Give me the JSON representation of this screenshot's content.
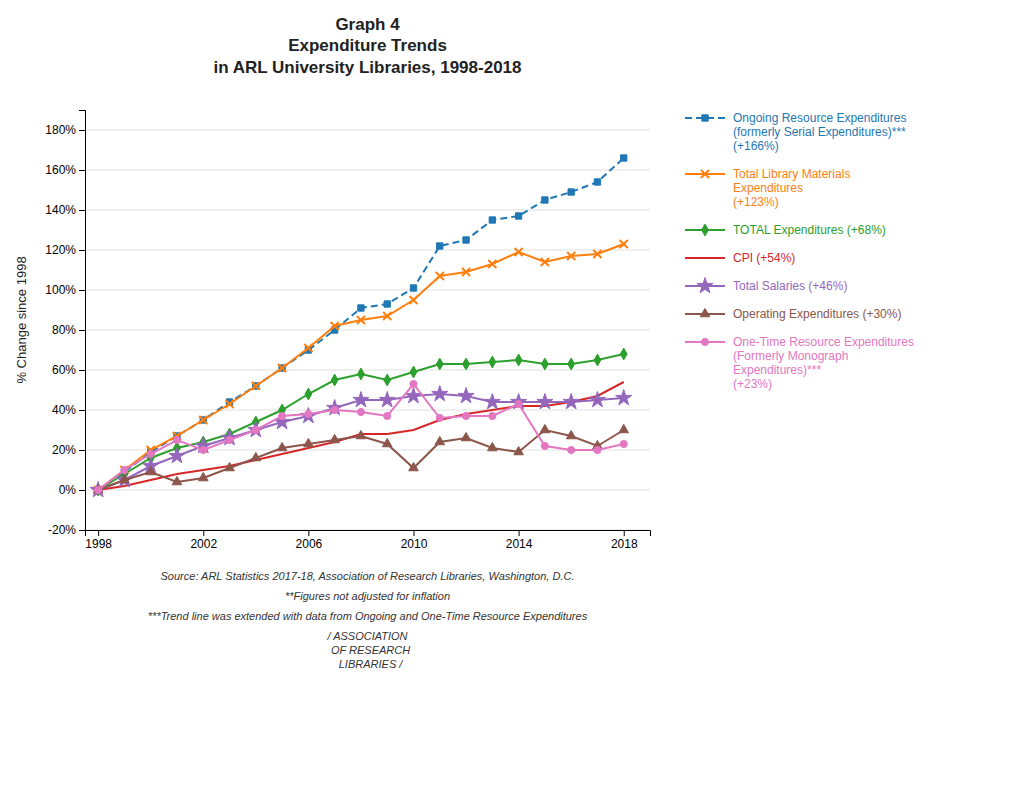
{
  "chart_data": {
    "type": "line",
    "title": "Graph 4\nExpenditure Trends\nin ARL University Libraries, 1998-2018",
    "ylabel": "% Change since 1998",
    "x": [
      1998,
      1999,
      2000,
      2001,
      2002,
      2003,
      2004,
      2005,
      2006,
      2007,
      2008,
      2009,
      2010,
      2011,
      2012,
      2013,
      2014,
      2015,
      2016,
      2017,
      2018
    ],
    "xlim": [
      1997.5,
      2019.0
    ],
    "xticks": [
      1998,
      2002,
      2006,
      2010,
      2014,
      2018
    ],
    "ylim": [
      -20,
      190
    ],
    "yticks": [
      {
        "value": -20,
        "label": "-20%"
      },
      {
        "value": 0,
        "label": "0%"
      },
      {
        "value": 20,
        "label": "20%"
      },
      {
        "value": 40,
        "label": "40%"
      },
      {
        "value": 60,
        "label": "60%"
      },
      {
        "value": 80,
        "label": "80%"
      },
      {
        "value": 100,
        "label": "100%"
      },
      {
        "value": 120,
        "label": "120%"
      },
      {
        "value": 140,
        "label": "140%"
      },
      {
        "value": 160,
        "label": "160%"
      },
      {
        "value": 180,
        "label": "180%"
      }
    ],
    "grid": true,
    "legend": "right",
    "annotations": [
      "Source: ARL Statistics 2017-18, Association of Research Libraries, Washington, D.C.",
      "**Figures not adjusted for inflation",
      "***Trend line was extended with data from Ongoing and One-Time Resource Expenditures",
      "/ ASSOCIATION\n  OF RESEARCH\n  LIBRARIES /"
    ],
    "series": [
      {
        "name": "Ongoing Resource Expenditures\n(formerly Serial Expenditures)***\n(+166%)",
        "marker": "square",
        "line_style": "dashed",
        "values": [
          0,
          9,
          19,
          27,
          35,
          44,
          52,
          61,
          70,
          80,
          91,
          93,
          101,
          122,
          125,
          135,
          137,
          145,
          149,
          154,
          166
        ]
      },
      {
        "name": "Total Library Materials\nExpenditures\n(+123%)",
        "marker": "x",
        "line_style": "solid",
        "values": [
          0,
          10,
          20,
          27,
          35,
          43,
          52,
          61,
          71,
          82,
          85,
          87,
          95,
          107,
          109,
          113,
          119,
          114,
          117,
          118,
          123
        ]
      },
      {
        "name": "TOTAL Expenditures (+68%)",
        "marker": "diamond",
        "line_style": "solid",
        "values": [
          0,
          8,
          16,
          21,
          24,
          28,
          34,
          40,
          48,
          55,
          58,
          55,
          59,
          63,
          63,
          64,
          65,
          63,
          63,
          65,
          68
        ]
      },
      {
        "name": "CPI (+54%)",
        "line_style": "solid",
        "values": [
          0,
          2,
          5,
          8,
          10,
          12,
          15,
          18,
          21,
          24,
          28,
          28,
          30,
          35,
          38,
          40,
          42,
          42,
          44,
          47,
          54
        ]
      },
      {
        "name": "Total Salaries (+46%)",
        "marker": "star",
        "line_style": "solid",
        "values": [
          0,
          5,
          12,
          17,
          22,
          26,
          30,
          34,
          37,
          41,
          45,
          45,
          47,
          48,
          47,
          44,
          44,
          44,
          44,
          45,
          46
        ]
      },
      {
        "name": "Operating Expenditures (+30%)",
        "marker": "triangle",
        "line_style": "solid",
        "values": [
          0,
          5,
          9,
          4,
          6,
          11,
          16,
          21,
          23,
          25,
          27,
          23,
          11,
          24,
          26,
          21,
          19,
          30,
          27,
          22,
          30
        ]
      },
      {
        "name": "One-Time Resource Expenditures\n(Formerly Monograph\nExpenditures)***\n(+23%)",
        "marker": "circle",
        "line_style": "solid",
        "values": [
          0,
          10,
          18,
          25,
          20,
          25,
          30,
          37,
          38,
          40,
          39,
          37,
          53,
          36,
          37,
          37,
          43,
          22,
          20,
          20,
          23
        ]
      }
    ]
  }
}
